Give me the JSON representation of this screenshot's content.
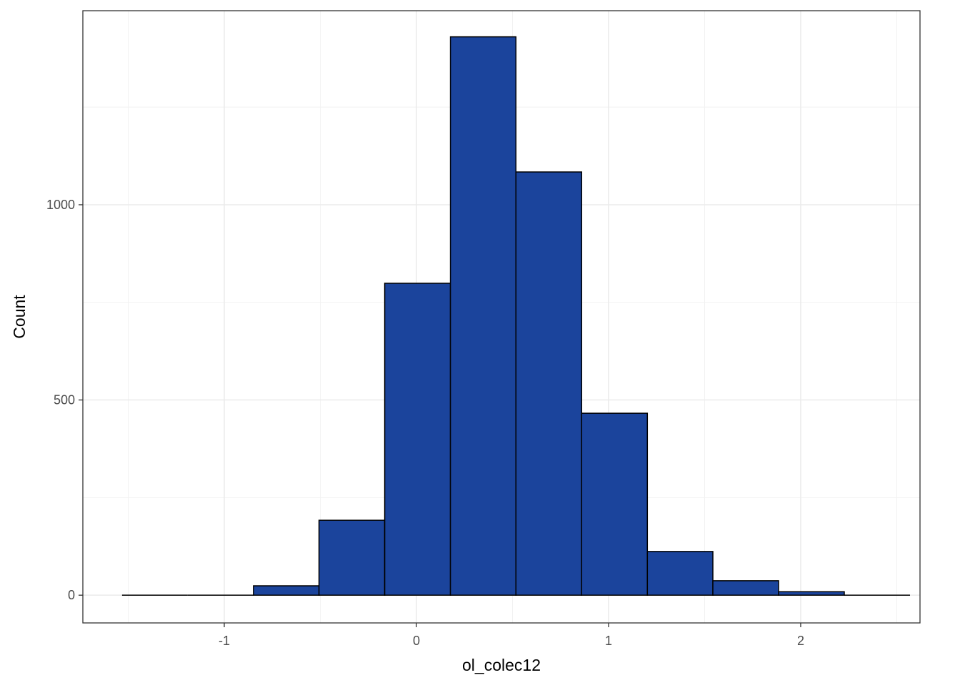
{
  "chart_data": {
    "type": "histogram",
    "x_label": "ol_colec12",
    "y_label": "Count",
    "bins": [
      -1.532,
      -1.19,
      -0.848,
      -0.507,
      -0.165,
      0.177,
      0.518,
      0.86,
      1.202,
      1.543,
      1.885,
      2.227,
      2.569
    ],
    "values": [
      0,
      0,
      24,
      192,
      799,
      1430,
      1084,
      466,
      112,
      37,
      9,
      0
    ],
    "color": "#1b449c",
    "edge_color": "#000000",
    "xlim": [
      -1.736,
      2.621
    ],
    "ylim": [
      -71,
      1497
    ],
    "xticks": [
      -1,
      0,
      1,
      2
    ],
    "yticks": [
      0,
      500,
      1000
    ],
    "grid": true
  }
}
